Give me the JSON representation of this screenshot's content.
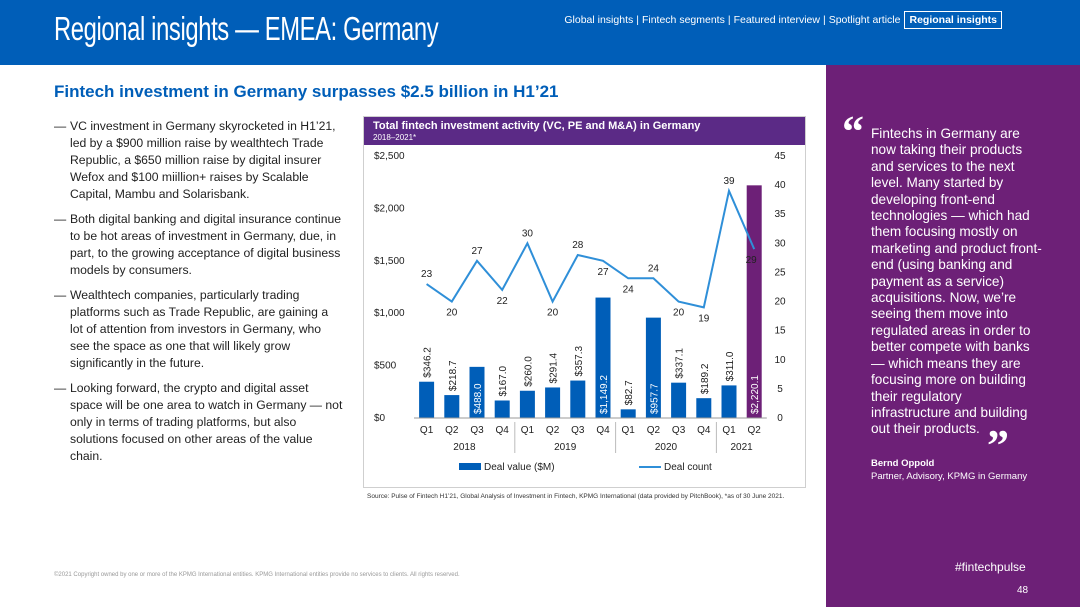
{
  "header": {
    "title": "Regional insights — EMEA: Germany",
    "nav": [
      "Global insights",
      "Fintech segments",
      "Featured interview",
      "Spotlight article"
    ],
    "nav_active": "Regional insights"
  },
  "subtitle": "Fintech investment in Germany surpasses $2.5 billion in H1’21",
  "bullets": [
    "VC investment in Germany skyrocketed in H1’21, led by a $900 million raise by wealthtech Trade Republic, a $650 million raise by digital insurer Wefox and $100 miillion+ raises by Scalable Capital, Mambu and Solarisbank.",
    "Both digital banking and digital insurance continue to be hot areas of investment in Germany, due, in part, to the growing acceptance of digital business models by consumers.",
    "Wealthtech companies, particularly trading platforms such as Trade Republic, are gaining a lot of attention from investors in Germany, who see the space as one that will likely grow significantly in the future.",
    "Looking forward, the crypto and digital asset space will be one area to watch in Germany — not only in terms of trading platforms, but also solutions focused on other areas of the value chain."
  ],
  "bullet_dash": "—",
  "chart_data": {
    "type": "bar",
    "title": "Total fintech investment activity (VC, PE and M&A) in Germany",
    "subtitle": "2018–2021*",
    "categories": [
      "Q1",
      "Q2",
      "Q3",
      "Q4",
      "Q1",
      "Q2",
      "Q3",
      "Q4",
      "Q1",
      "Q2",
      "Q3",
      "Q4",
      "Q1",
      "Q2"
    ],
    "years": [
      "2018",
      "2019",
      "2020",
      "2021"
    ],
    "series": [
      {
        "name": "Deal value ($M)",
        "axis": "left",
        "type": "bar",
        "values": [
          346.2,
          218.7,
          488.0,
          167.0,
          260.0,
          291.4,
          357.3,
          1149.2,
          82.7,
          957.7,
          337.1,
          189.2,
          311.0,
          2220.1
        ],
        "labels": [
          "$346.2",
          "$218.7",
          "$488.0",
          "$167.0",
          "$260.0",
          "$291.4",
          "$357.3",
          "$1,149.2",
          "$82.7",
          "$957.7",
          "$337.1",
          "$189.2",
          "$311.0",
          "$2,220.1"
        ]
      },
      {
        "name": "Deal count",
        "axis": "right",
        "type": "line",
        "values": [
          23,
          20,
          27,
          22,
          30,
          20,
          28,
          27,
          24,
          24,
          20,
          19,
          39,
          29
        ]
      }
    ],
    "left_axis": {
      "ticks": [
        "$0",
        "$500",
        "$1,000",
        "$1,500",
        "$2,000",
        "$2,500"
      ],
      "range": [
        0,
        2500
      ]
    },
    "right_axis": {
      "ticks": [
        "0",
        "5",
        "10",
        "15",
        "20",
        "25",
        "30",
        "35",
        "40",
        "45"
      ],
      "range": [
        0,
        45
      ]
    },
    "colors": {
      "bar": "#005eb8",
      "bar_highlight": "#6d2077",
      "line": "#2f8fd8",
      "title_bg": "#5b2a86"
    }
  },
  "source": "Source: Pulse of Fintech H1’21, Global Analysis of Investment in Fintech, KPMG International (data provided by PitchBook), *as of 30 June 2021.",
  "footer": "©2021 Copyright owned by one or more of the KPMG International entities. KPMG International entities provide no services to clients. All rights reserved.",
  "quote": {
    "open": "“",
    "text": "Fintechs in Germany are now taking their products and services to the next level. Many started by developing front-end technologies — which had them focusing mostly on marketing and product front-end (using banking and payment as a service) acquisitions. Now, we’re seeing them move into regulated areas in order to better compete with banks — which means they are focusing more on building their regulatory infrastructure and building out their products.",
    "close": "”",
    "author": "Bernd Oppold",
    "role": "Partner, Advisory, KPMG in Germany"
  },
  "hashtag": "#fintechpulse",
  "page_number": "48"
}
